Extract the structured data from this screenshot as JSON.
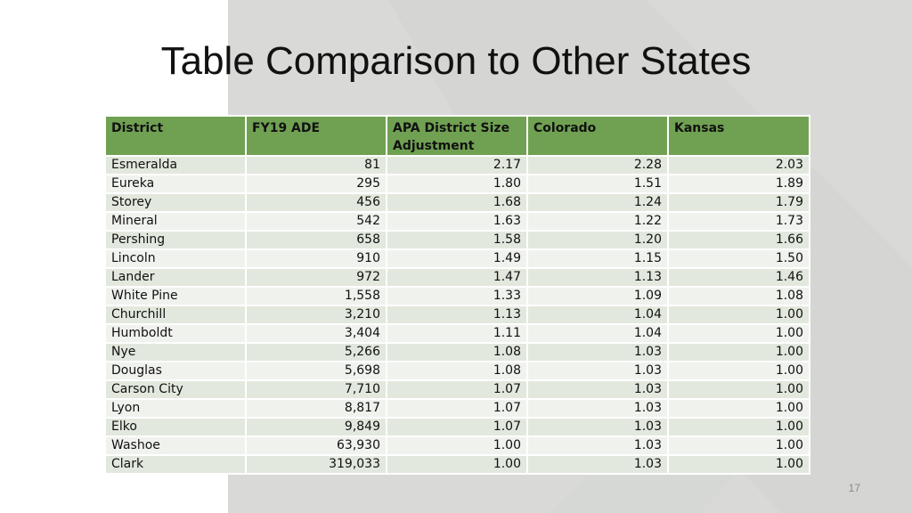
{
  "slide": {
    "title": "Table Comparison to Other States",
    "page_number": "17"
  },
  "table": {
    "headers": [
      "District",
      "FY19 ADE",
      "APA District Size Adjustment",
      "Colorado",
      "Kansas"
    ],
    "rows": [
      [
        "Esmeralda",
        "81",
        "2.17",
        "2.28",
        "2.03"
      ],
      [
        "Eureka",
        "295",
        "1.80",
        "1.51",
        "1.89"
      ],
      [
        "Storey",
        "456",
        "1.68",
        "1.24",
        "1.79"
      ],
      [
        "Mineral",
        "542",
        "1.63",
        "1.22",
        "1.73"
      ],
      [
        "Pershing",
        "658",
        "1.58",
        "1.20",
        "1.66"
      ],
      [
        "Lincoln",
        "910",
        "1.49",
        "1.15",
        "1.50"
      ],
      [
        "Lander",
        "972",
        "1.47",
        "1.13",
        "1.46"
      ],
      [
        "White Pine",
        "1,558",
        "1.33",
        "1.09",
        "1.08"
      ],
      [
        "Churchill",
        "3,210",
        "1.13",
        "1.04",
        "1.00"
      ],
      [
        "Humboldt",
        "3,404",
        "1.11",
        "1.04",
        "1.00"
      ],
      [
        "Nye",
        "5,266",
        "1.08",
        "1.03",
        "1.00"
      ],
      [
        "Douglas",
        "5,698",
        "1.08",
        "1.03",
        "1.00"
      ],
      [
        "Carson City",
        "7,710",
        "1.07",
        "1.03",
        "1.00"
      ],
      [
        "Lyon",
        "8,817",
        "1.07",
        "1.03",
        "1.00"
      ],
      [
        "Elko",
        "9,849",
        "1.07",
        "1.03",
        "1.00"
      ],
      [
        "Washoe",
        "63,930",
        "1.00",
        "1.03",
        "1.00"
      ],
      [
        "Clark",
        "319,033",
        "1.00",
        "1.03",
        "1.00"
      ]
    ]
  },
  "colors": {
    "header_bg": "#70a152",
    "row_odd": "#e2e8dd",
    "row_even": "#f0f2ee",
    "panel_bg": "#d9dad8"
  }
}
